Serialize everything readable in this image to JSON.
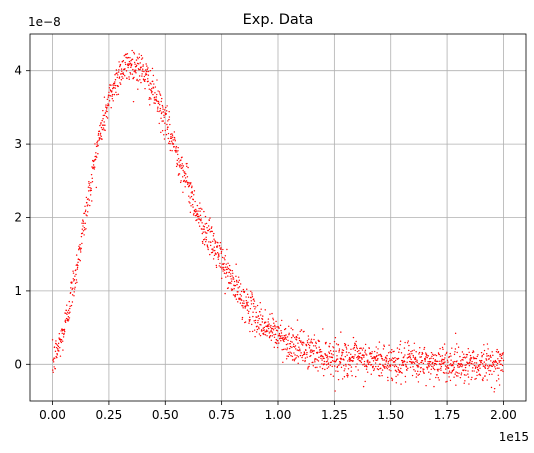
{
  "chart_data": {
    "type": "scatter",
    "title": "Exp. Data",
    "xlabel": "",
    "ylabel": "",
    "x_offset_label": "1e15",
    "y_offset_label": "1e−8",
    "xlim": [
      -0.1,
      2.1
    ],
    "ylim": [
      -0.5,
      4.5
    ],
    "x_ticks": [
      0.0,
      0.25,
      0.5,
      0.75,
      1.0,
      1.25,
      1.5,
      1.75,
      2.0
    ],
    "x_tick_labels": [
      "0.00",
      "0.25",
      "0.50",
      "0.75",
      "1.00",
      "1.25",
      "1.50",
      "1.75",
      "2.00"
    ],
    "y_ticks": [
      0,
      1,
      2,
      3,
      4
    ],
    "y_tick_labels": [
      "0",
      "1",
      "2",
      "3",
      "4"
    ],
    "grid": true,
    "marker_color": "#ff0000",
    "series": [
      {
        "x_range": [
          0.0,
          2.0
        ],
        "point_count": 2000,
        "curve_x": [
          0.0,
          0.05,
          0.1,
          0.15,
          0.2,
          0.25,
          0.3,
          0.35,
          0.4,
          0.45,
          0.5,
          0.55,
          0.6,
          0.65,
          0.7,
          0.75,
          0.8,
          0.85,
          0.9,
          0.95,
          1.0,
          1.05,
          1.1,
          1.15,
          1.2,
          1.3,
          1.4,
          1.5,
          1.6,
          1.7,
          1.8,
          1.9,
          2.0
        ],
        "curve_y": [
          0.0,
          0.45,
          1.2,
          2.1,
          3.0,
          3.6,
          4.0,
          4.1,
          4.0,
          3.7,
          3.3,
          2.9,
          2.45,
          2.0,
          1.7,
          1.4,
          1.1,
          0.85,
          0.65,
          0.5,
          0.4,
          0.3,
          0.22,
          0.17,
          0.12,
          0.08,
          0.05,
          0.03,
          0.02,
          0.01,
          0.01,
          0.0,
          0.0
        ],
        "noise_sd": 0.12
      }
    ]
  }
}
